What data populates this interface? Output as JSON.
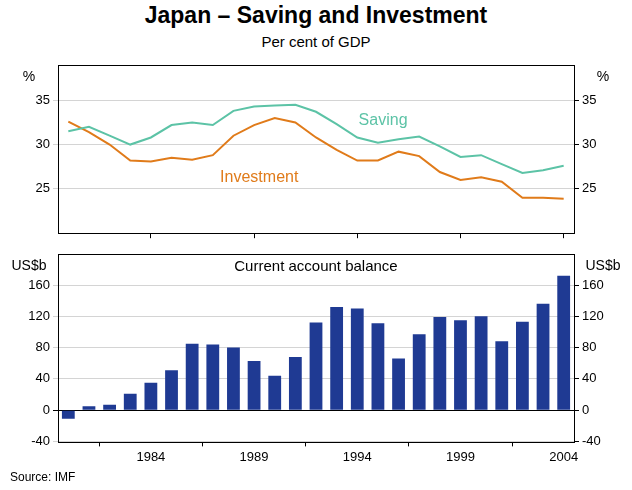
{
  "title": "Japan – Saving and Investment",
  "subtitle": "Per cent of GDP",
  "source": "Source: IMF",
  "chart_data": [
    {
      "type": "line",
      "y_label": "%",
      "x": [
        1980,
        1981,
        1982,
        1983,
        1984,
        1985,
        1986,
        1987,
        1988,
        1989,
        1990,
        1991,
        1992,
        1993,
        1994,
        1995,
        1996,
        1997,
        1998,
        1999,
        2000,
        2001,
        2002,
        2003,
        2004
      ],
      "xlim": [
        1979.5,
        2004.5
      ],
      "xticks": [
        1984,
        1989,
        1994,
        1999,
        2004
      ],
      "ylim": [
        20,
        39
      ],
      "yticks": [
        25,
        30,
        35
      ],
      "grid": true,
      "tick_labels": "y",
      "series": [
        {
          "name": "Saving",
          "color": "#5cc3a6",
          "values": [
            31.5,
            32.0,
            31.0,
            30.0,
            30.8,
            32.2,
            32.5,
            32.2,
            33.8,
            34.3,
            34.4,
            34.5,
            33.7,
            32.3,
            30.8,
            30.2,
            30.6,
            30.9,
            29.8,
            28.6,
            28.8,
            27.8,
            26.8,
            27.1,
            27.6
          ]
        },
        {
          "name": "Investment",
          "color": "#e07b1a",
          "values": [
            32.6,
            31.4,
            30.0,
            28.2,
            28.1,
            28.5,
            28.3,
            28.8,
            31.0,
            32.2,
            33.0,
            32.5,
            30.8,
            29.4,
            28.2,
            28.2,
            29.2,
            28.7,
            26.9,
            26.0,
            26.3,
            25.8,
            24.0,
            24.0,
            23.9
          ]
        }
      ]
    },
    {
      "type": "bar",
      "title": "Current account balance",
      "y_label": "US$b",
      "x": [
        1980,
        1981,
        1982,
        1983,
        1984,
        1985,
        1986,
        1987,
        1988,
        1989,
        1990,
        1991,
        1992,
        1993,
        1994,
        1995,
        1996,
        1997,
        1998,
        1999,
        2000,
        2001,
        2002,
        2003,
        2004
      ],
      "values": [
        -11,
        5,
        7,
        21,
        35,
        51,
        85,
        84,
        80,
        63,
        44,
        68,
        112,
        132,
        130,
        111,
        66,
        97,
        119,
        115,
        120,
        88,
        113,
        136,
        172
      ],
      "color": "#1f3a93",
      "xlim": [
        1979.5,
        2004.5
      ],
      "xticks": [
        1984,
        1989,
        1994,
        1999,
        2004
      ],
      "ylim": [
        -40,
        200
      ],
      "yticks": [
        -40,
        0,
        40,
        80,
        120,
        160
      ],
      "grid": true
    }
  ]
}
